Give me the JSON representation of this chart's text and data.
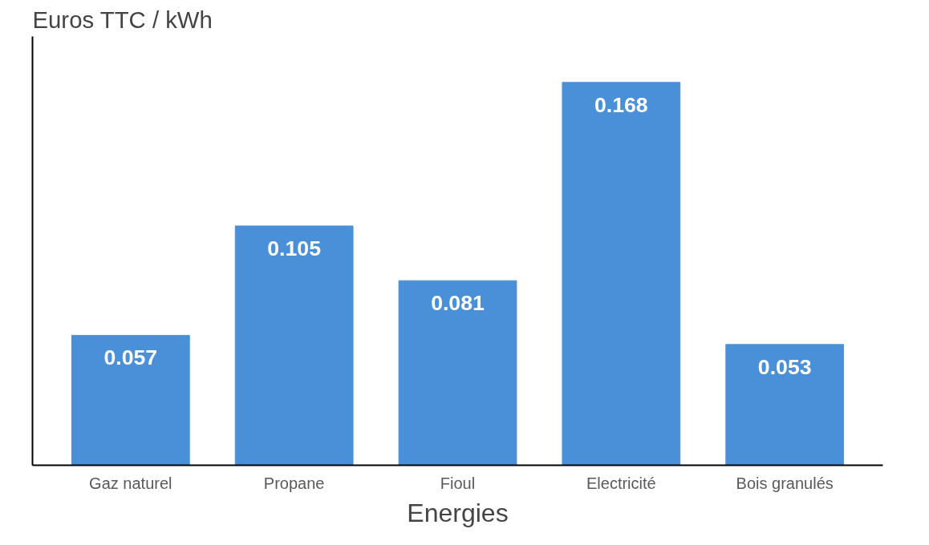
{
  "chart_data": {
    "type": "bar",
    "xlabel": "Energies",
    "ylabel": "Euros TTC / kWh",
    "categories": [
      "Gaz naturel",
      "Propane",
      "Fioul",
      "Electricité",
      "Bois granulés"
    ],
    "values": [
      0.057,
      0.105,
      0.081,
      0.168,
      0.053
    ],
    "color": "#4a90d9",
    "data_labels": true,
    "grid": false
  }
}
